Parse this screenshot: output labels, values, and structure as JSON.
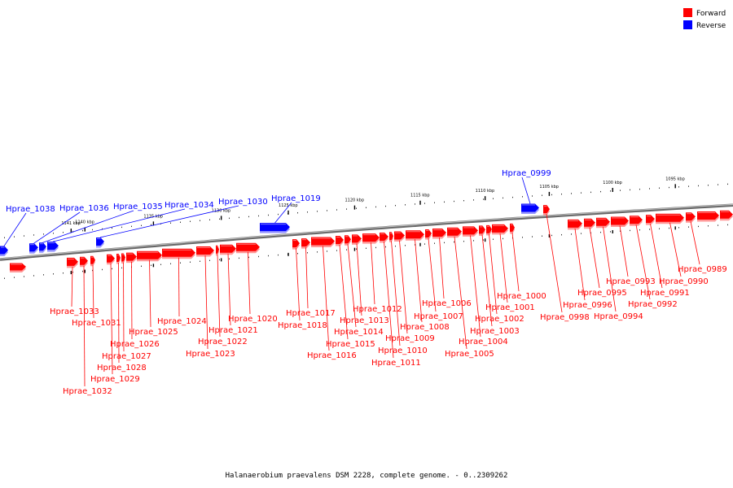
{
  "legend": [
    {
      "label": "Forward",
      "color": "#ff0000"
    },
    {
      "label": "Reverse",
      "color": "#0000ff"
    }
  ],
  "colors": {
    "forward": "#ff0000",
    "reverse": "#0000ff",
    "backbone": "#777777"
  },
  "caption": "Halanaerobium praevalens DSM 2228, complete genome. - 0..2309262",
  "ticks": [
    {
      "label": "1095 kbp",
      "kbp": 1095
    },
    {
      "label": "1100 kbp",
      "kbp": 1100
    },
    {
      "label": "1105 kbp",
      "kbp": 1105
    },
    {
      "label": "1110 kbp",
      "kbp": 1110
    },
    {
      "label": "1115 kbp",
      "kbp": 1115
    },
    {
      "label": "1120 kbp",
      "kbp": 1120
    },
    {
      "label": "1125 kbp",
      "kbp": 1125
    },
    {
      "label": "1130 kbp",
      "kbp": 1130
    },
    {
      "label": "1135 kbp",
      "kbp": 1135
    },
    {
      "label": "1140 kbp",
      "kbp": 1140
    },
    {
      "label": "1141 kbp",
      "kbp": 1141
    }
  ],
  "genes": [
    {
      "name": "Hprae_1038",
      "strand": "reverse"
    },
    {
      "name": "Hprae_1036",
      "strand": "reverse"
    },
    {
      "name": "Hprae_1035",
      "strand": "reverse"
    },
    {
      "name": "Hprae_1034",
      "strand": "reverse"
    },
    {
      "name": "Hprae_1030",
      "strand": "reverse"
    },
    {
      "name": "Hprae_1019",
      "strand": "reverse"
    },
    {
      "name": "Hprae_0999",
      "strand": "reverse"
    },
    {
      "name": "Hprae_1033",
      "strand": "forward"
    },
    {
      "name": "Hprae_1032",
      "strand": "forward"
    },
    {
      "name": "Hprae_1031",
      "strand": "forward"
    },
    {
      "name": "Hprae_1029",
      "strand": "forward"
    },
    {
      "name": "Hprae_1028",
      "strand": "forward"
    },
    {
      "name": "Hprae_1027",
      "strand": "forward"
    },
    {
      "name": "Hprae_1026",
      "strand": "forward"
    },
    {
      "name": "Hprae_1025",
      "strand": "forward"
    },
    {
      "name": "Hprae_1024",
      "strand": "forward"
    },
    {
      "name": "Hprae_1023",
      "strand": "forward"
    },
    {
      "name": "Hprae_1022",
      "strand": "forward"
    },
    {
      "name": "Hprae_1021",
      "strand": "forward"
    },
    {
      "name": "Hprae_1020",
      "strand": "forward"
    },
    {
      "name": "Hprae_1018",
      "strand": "forward"
    },
    {
      "name": "Hprae_1017",
      "strand": "forward"
    },
    {
      "name": "Hprae_1016",
      "strand": "forward"
    },
    {
      "name": "Hprae_1015",
      "strand": "forward"
    },
    {
      "name": "Hprae_1014",
      "strand": "forward"
    },
    {
      "name": "Hprae_1013",
      "strand": "forward"
    },
    {
      "name": "Hprae_1012",
      "strand": "forward"
    },
    {
      "name": "Hprae_1011",
      "strand": "forward"
    },
    {
      "name": "Hprae_1010",
      "strand": "forward"
    },
    {
      "name": "Hprae_1009",
      "strand": "forward"
    },
    {
      "name": "Hprae_1008",
      "strand": "forward"
    },
    {
      "name": "Hprae_1007",
      "strand": "forward"
    },
    {
      "name": "Hprae_1006",
      "strand": "forward"
    },
    {
      "name": "Hprae_1005",
      "strand": "forward"
    },
    {
      "name": "Hprae_1004",
      "strand": "forward"
    },
    {
      "name": "Hprae_1003",
      "strand": "forward"
    },
    {
      "name": "Hprae_1002",
      "strand": "forward"
    },
    {
      "name": "Hprae_1001",
      "strand": "forward"
    },
    {
      "name": "Hprae_1000",
      "strand": "forward"
    },
    {
      "name": "Hprae_0998",
      "strand": "forward"
    },
    {
      "name": "Hprae_0996",
      "strand": "forward"
    },
    {
      "name": "Hprae_0995",
      "strand": "forward"
    },
    {
      "name": "Hprae_0994",
      "strand": "forward"
    },
    {
      "name": "Hprae_0993",
      "strand": "forward"
    },
    {
      "name": "Hprae_0992",
      "strand": "forward"
    },
    {
      "name": "Hprae_0991",
      "strand": "forward"
    },
    {
      "name": "Hprae_0990",
      "strand": "forward"
    },
    {
      "name": "Hprae_0989",
      "strand": "forward"
    }
  ]
}
